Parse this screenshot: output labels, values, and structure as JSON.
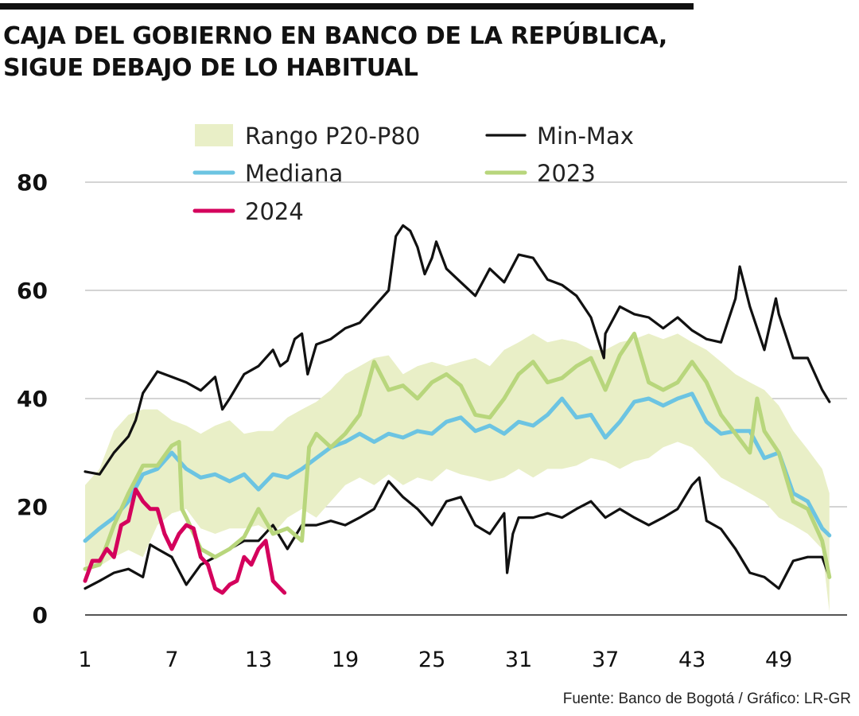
{
  "title_line1": "CAJA DEL GOBIERNO EN BANCO DE LA REPÚBLICA,",
  "title_line2": "SIGUE DEBAJO DE LO HABITUAL",
  "source": "Fuente: Banco de Bogotá / Gráfico: LR-GR",
  "colors": {
    "band": "#e9efc7",
    "minmax": "#111111",
    "median": "#6cc4e2",
    "y2023": "#b8d67c",
    "y2024": "#d4005c",
    "grid": "#bbbbbb"
  },
  "chart_data": {
    "type": "line",
    "title": "CAJA DEL GOBIERNO EN BANCO DE LA REPÚBLICA, SIGUE DEBAJO DE LO HABITUAL",
    "xlabel": "",
    "ylabel": "",
    "xlim": [
      1,
      53
    ],
    "ylim": [
      0,
      80
    ],
    "x_ticks": [
      "1",
      "7",
      "13",
      "19",
      "25",
      "31",
      "37",
      "43",
      "49"
    ],
    "y_ticks": [
      "0",
      "20",
      "40",
      "60",
      "80"
    ],
    "grid": "horizontal",
    "legend": [
      {
        "label": "Rango P20-P80",
        "key": "band"
      },
      {
        "label": "Min-Max",
        "key": "minmax"
      },
      {
        "label": "Mediana",
        "key": "median"
      },
      {
        "label": "2023",
        "key": "y2023"
      },
      {
        "label": "2024",
        "key": "y2024"
      }
    ],
    "band": {
      "name": "Rango P20-P80",
      "x": [
        1,
        2,
        3,
        4,
        5,
        6,
        7,
        8,
        9,
        10,
        11,
        12,
        13,
        14,
        15,
        16,
        17,
        18,
        19,
        20,
        21,
        22,
        23,
        24,
        25,
        26,
        27,
        28,
        29,
        30,
        31,
        32,
        33,
        34,
        35,
        36,
        37,
        38,
        39,
        40,
        41,
        42,
        43,
        44,
        45,
        46,
        47,
        48,
        49,
        50,
        51,
        52,
        52.5
      ],
      "upper": [
        24,
        27,
        34,
        37,
        38,
        38,
        36,
        35,
        33.5,
        35,
        36,
        33.5,
        34,
        34,
        36.5,
        38,
        39.4,
        41.6,
        44.5,
        46,
        47.5,
        48,
        44.5,
        46,
        46.8,
        46,
        46.8,
        47.5,
        46,
        49,
        50.4,
        52,
        50.4,
        51,
        50.4,
        49,
        49,
        50.4,
        51,
        52,
        51,
        52,
        50.4,
        49,
        46.8,
        44.5,
        43,
        41.6,
        38.7,
        34,
        30.6,
        27,
        22.5
      ],
      "lower": [
        9,
        9,
        10.7,
        12,
        10.7,
        16.6,
        18.8,
        19.6,
        16,
        15,
        16,
        16,
        16.6,
        15,
        18,
        19.6,
        18,
        21,
        24,
        25.4,
        24,
        26,
        24,
        25.4,
        24.7,
        27,
        26,
        25.4,
        24.7,
        25.4,
        27,
        25.4,
        27,
        27,
        27.6,
        29,
        28.4,
        27,
        28.4,
        29,
        31,
        32,
        31,
        28.4,
        25.4,
        24,
        22.5,
        21,
        18,
        16.6,
        15,
        12.2,
        0.5
      ]
    },
    "series": [
      {
        "name": "Min-Max",
        "key": "max",
        "points": [
          [
            1,
            26.5
          ],
          [
            2,
            26
          ],
          [
            3,
            30
          ],
          [
            4,
            33
          ],
          [
            4.5,
            36
          ],
          [
            5,
            41
          ],
          [
            6,
            45
          ],
          [
            7,
            44
          ],
          [
            8,
            43
          ],
          [
            9,
            41.5
          ],
          [
            10,
            44
          ],
          [
            10.5,
            38
          ],
          [
            11,
            40
          ],
          [
            12,
            44.5
          ],
          [
            13,
            46
          ],
          [
            14,
            49
          ],
          [
            14.5,
            46
          ],
          [
            15,
            47
          ],
          [
            15.5,
            51
          ],
          [
            16,
            52
          ],
          [
            16.4,
            44.5
          ],
          [
            17,
            50
          ],
          [
            18,
            51
          ],
          [
            19,
            53
          ],
          [
            20,
            54
          ],
          [
            21,
            57
          ],
          [
            22,
            60
          ],
          [
            22.5,
            70
          ],
          [
            23,
            72
          ],
          [
            23.5,
            71
          ],
          [
            24,
            68
          ],
          [
            24.5,
            63
          ],
          [
            25,
            66
          ],
          [
            25.3,
            69
          ],
          [
            26,
            64
          ],
          [
            27,
            61.5
          ],
          [
            28,
            59
          ],
          [
            29,
            64
          ],
          [
            30,
            61.5
          ],
          [
            31,
            66.6
          ],
          [
            32,
            66
          ],
          [
            33,
            62
          ],
          [
            34,
            61
          ],
          [
            35,
            59
          ],
          [
            36,
            55
          ],
          [
            36.9,
            47.5
          ],
          [
            37,
            52
          ],
          [
            38,
            57
          ],
          [
            39,
            55.6
          ],
          [
            40,
            55
          ],
          [
            41,
            53
          ],
          [
            42,
            55
          ],
          [
            43,
            52.6
          ],
          [
            44,
            51
          ],
          [
            45,
            50.4
          ],
          [
            46,
            58.5
          ],
          [
            46.3,
            64.4
          ],
          [
            47,
            57
          ],
          [
            48,
            49
          ],
          [
            48.8,
            58.5
          ],
          [
            49,
            55.6
          ],
          [
            50,
            47.5
          ],
          [
            51,
            47.5
          ],
          [
            52,
            41.6
          ],
          [
            52.5,
            39.4
          ]
        ]
      },
      {
        "name": "Min-Max",
        "key": "min",
        "points": [
          [
            1,
            4.9
          ],
          [
            2,
            6.3
          ],
          [
            3,
            7.8
          ],
          [
            4,
            8.5
          ],
          [
            5,
            7
          ],
          [
            5.5,
            13
          ],
          [
            6,
            12.2
          ],
          [
            7,
            10.7
          ],
          [
            8,
            5.6
          ],
          [
            9,
            9.3
          ],
          [
            10,
            10.7
          ],
          [
            11,
            12.2
          ],
          [
            12,
            13.7
          ],
          [
            13,
            13.7
          ],
          [
            14,
            16.6
          ],
          [
            15,
            12.2
          ],
          [
            16,
            16.6
          ],
          [
            17,
            16.6
          ],
          [
            18,
            17.4
          ],
          [
            19,
            16.6
          ],
          [
            20,
            18
          ],
          [
            21,
            19.6
          ],
          [
            22,
            24.7
          ],
          [
            23,
            21.8
          ],
          [
            24,
            19.6
          ],
          [
            25,
            16.6
          ],
          [
            26,
            21
          ],
          [
            27,
            21.8
          ],
          [
            28,
            16.6
          ],
          [
            29,
            15
          ],
          [
            30,
            18.8
          ],
          [
            30.2,
            7.8
          ],
          [
            30.6,
            15
          ],
          [
            31,
            18
          ],
          [
            32,
            18
          ],
          [
            33,
            18.8
          ],
          [
            34,
            18
          ],
          [
            35,
            19.6
          ],
          [
            36,
            21
          ],
          [
            37,
            18
          ],
          [
            38,
            19.6
          ],
          [
            39,
            18
          ],
          [
            40,
            16.6
          ],
          [
            41,
            18
          ],
          [
            42,
            19.6
          ],
          [
            43,
            24
          ],
          [
            43.5,
            25.4
          ],
          [
            44,
            17.4
          ],
          [
            45,
            15.9
          ],
          [
            46,
            12.2
          ],
          [
            47,
            7.8
          ],
          [
            48,
            7
          ],
          [
            49,
            4.9
          ],
          [
            50,
            10
          ],
          [
            51,
            10.7
          ],
          [
            52,
            10.7
          ],
          [
            52.5,
            7
          ]
        ]
      },
      {
        "name": "Mediana",
        "key": "median",
        "points": [
          [
            1,
            13.7
          ],
          [
            2,
            16
          ],
          [
            3,
            18
          ],
          [
            4,
            21
          ],
          [
            5,
            26
          ],
          [
            6,
            27
          ],
          [
            7,
            30
          ],
          [
            8,
            27
          ],
          [
            9,
            25.4
          ],
          [
            10,
            26
          ],
          [
            11,
            24.7
          ],
          [
            12,
            26
          ],
          [
            13,
            23.2
          ],
          [
            14,
            26
          ],
          [
            15,
            25.4
          ],
          [
            16,
            27
          ],
          [
            17,
            29
          ],
          [
            18,
            31
          ],
          [
            19,
            32
          ],
          [
            20,
            33.5
          ],
          [
            21,
            32
          ],
          [
            22,
            33.5
          ],
          [
            23,
            32.8
          ],
          [
            24,
            34
          ],
          [
            25,
            33.5
          ],
          [
            26,
            35.7
          ],
          [
            27,
            36.5
          ],
          [
            28,
            34
          ],
          [
            29,
            35
          ],
          [
            30,
            33.5
          ],
          [
            31,
            35.7
          ],
          [
            32,
            35
          ],
          [
            33,
            37
          ],
          [
            34,
            40
          ],
          [
            35,
            36.5
          ],
          [
            36,
            37
          ],
          [
            37,
            32.8
          ],
          [
            38,
            35.7
          ],
          [
            39,
            39.4
          ],
          [
            40,
            40
          ],
          [
            41,
            38.7
          ],
          [
            42,
            40
          ],
          [
            43,
            40.9
          ],
          [
            44,
            35.7
          ],
          [
            45,
            33.5
          ],
          [
            46,
            34
          ],
          [
            47,
            34
          ],
          [
            48,
            29
          ],
          [
            49,
            30
          ],
          [
            50,
            22.5
          ],
          [
            51,
            21
          ],
          [
            52,
            16
          ],
          [
            52.5,
            14.7
          ]
        ]
      },
      {
        "name": "2023",
        "key": "y2023",
        "points": [
          [
            1,
            8.5
          ],
          [
            2,
            9.3
          ],
          [
            3,
            16.6
          ],
          [
            4,
            22.5
          ],
          [
            5,
            27.6
          ],
          [
            6,
            27.6
          ],
          [
            7,
            31.3
          ],
          [
            7.5,
            32
          ],
          [
            7.7,
            19.6
          ],
          [
            8,
            18
          ],
          [
            9,
            12.2
          ],
          [
            10,
            10.7
          ],
          [
            11,
            12.2
          ],
          [
            12,
            14.4
          ],
          [
            13,
            19.6
          ],
          [
            14,
            15
          ],
          [
            15,
            16
          ],
          [
            16,
            13.7
          ],
          [
            16.5,
            31
          ],
          [
            17,
            33.5
          ],
          [
            18,
            31
          ],
          [
            19,
            33.5
          ],
          [
            20,
            37
          ],
          [
            21,
            46.8
          ],
          [
            22,
            41.6
          ],
          [
            23,
            42.4
          ],
          [
            24,
            40
          ],
          [
            25,
            43
          ],
          [
            26,
            44.5
          ],
          [
            27,
            42.4
          ],
          [
            28,
            37
          ],
          [
            29,
            36.5
          ],
          [
            30,
            40
          ],
          [
            31,
            44.5
          ],
          [
            32,
            46.8
          ],
          [
            33,
            43
          ],
          [
            34,
            43.8
          ],
          [
            35,
            46
          ],
          [
            36,
            47.5
          ],
          [
            37,
            41.6
          ],
          [
            38,
            48
          ],
          [
            39,
            52
          ],
          [
            40,
            43
          ],
          [
            41,
            41.6
          ],
          [
            42,
            43
          ],
          [
            43,
            46.8
          ],
          [
            44,
            43
          ],
          [
            45,
            37
          ],
          [
            46,
            33.5
          ],
          [
            47,
            30
          ],
          [
            47.5,
            40
          ],
          [
            48,
            34
          ],
          [
            49,
            30
          ],
          [
            50,
            21
          ],
          [
            51,
            19.6
          ],
          [
            52,
            13.7
          ],
          [
            52.5,
            7
          ]
        ]
      },
      {
        "name": "2024",
        "key": "y2024",
        "points": [
          [
            1,
            6.3
          ],
          [
            1.5,
            10
          ],
          [
            2,
            10
          ],
          [
            2.5,
            12.2
          ],
          [
            3,
            10.7
          ],
          [
            3.5,
            16.6
          ],
          [
            4,
            17.4
          ],
          [
            4.5,
            23.2
          ],
          [
            5,
            21
          ],
          [
            5.5,
            19.6
          ],
          [
            6,
            19.6
          ],
          [
            6.5,
            15
          ],
          [
            7,
            12.2
          ],
          [
            7.5,
            15
          ],
          [
            8,
            16.6
          ],
          [
            8.5,
            16
          ],
          [
            9,
            10.7
          ],
          [
            9.5,
            9.3
          ],
          [
            10,
            4.9
          ],
          [
            10.5,
            4.1
          ],
          [
            11,
            5.6
          ],
          [
            11.5,
            6.3
          ],
          [
            12,
            10.7
          ],
          [
            12.5,
            9.3
          ],
          [
            13,
            12.2
          ],
          [
            13.5,
            13.7
          ],
          [
            14,
            6.3
          ],
          [
            14.5,
            4.9
          ],
          [
            14.8,
            4.1
          ]
        ]
      }
    ]
  }
}
